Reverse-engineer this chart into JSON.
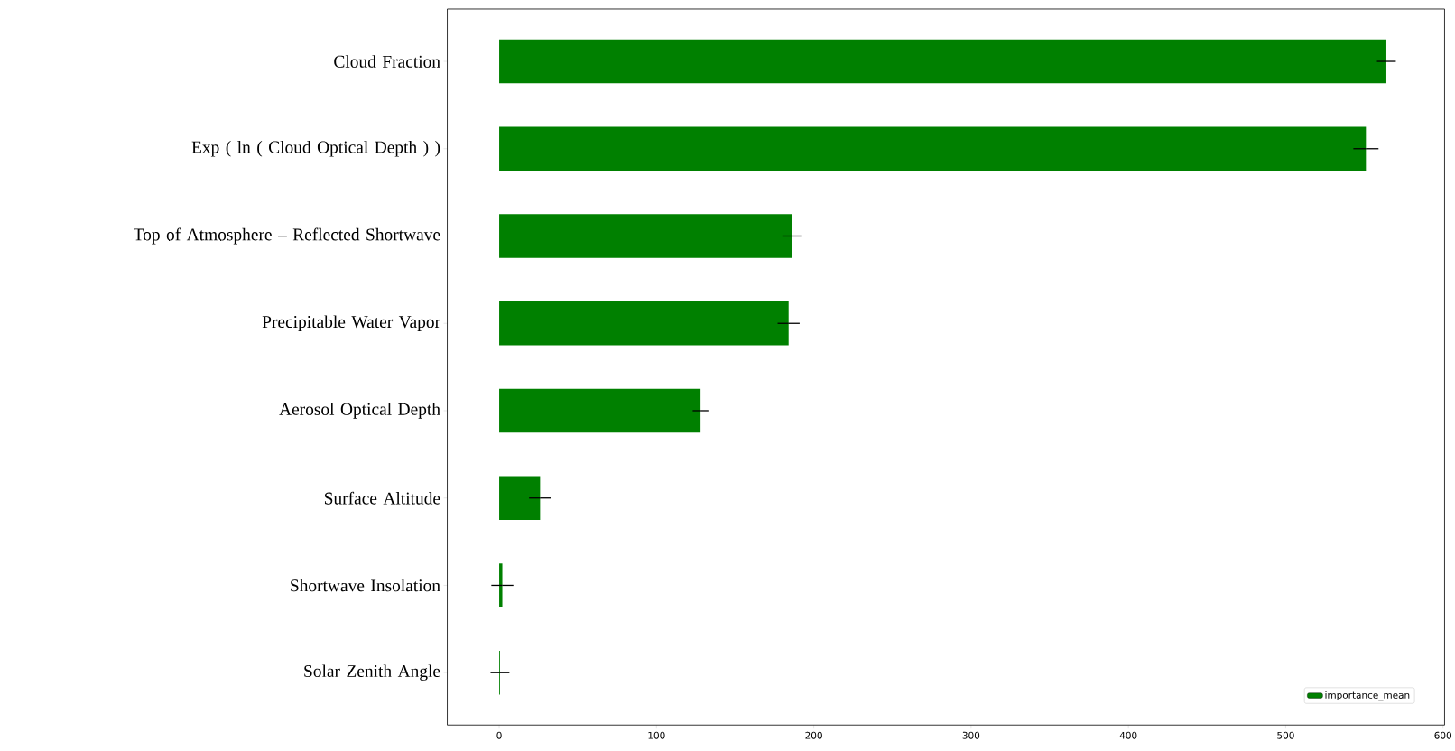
{
  "chart_data": {
    "type": "bar",
    "orientation": "horizontal",
    "categories": [
      "Cloud Fraction",
      "Exp ( ln ( Cloud Optical Depth )  )",
      "Top of Atmosphere – Reflected Shortwave",
      "Precipitable Water Vapor",
      "Aerosol Optical Depth",
      "Surface Altitude",
      "Shortwave Insolation",
      "Solar Zenith Angle"
    ],
    "series": [
      {
        "name": "importance_mean",
        "color": "#008000",
        "values": [
          564,
          551,
          186,
          184,
          128,
          26,
          2,
          0.5
        ],
        "errors": [
          6,
          8,
          6,
          7,
          5,
          7,
          7,
          6
        ]
      }
    ],
    "xlim": [
      -33,
      601
    ],
    "xticks": [
      0,
      100,
      200,
      300,
      400,
      500,
      600
    ],
    "legend": "bottom right"
  }
}
